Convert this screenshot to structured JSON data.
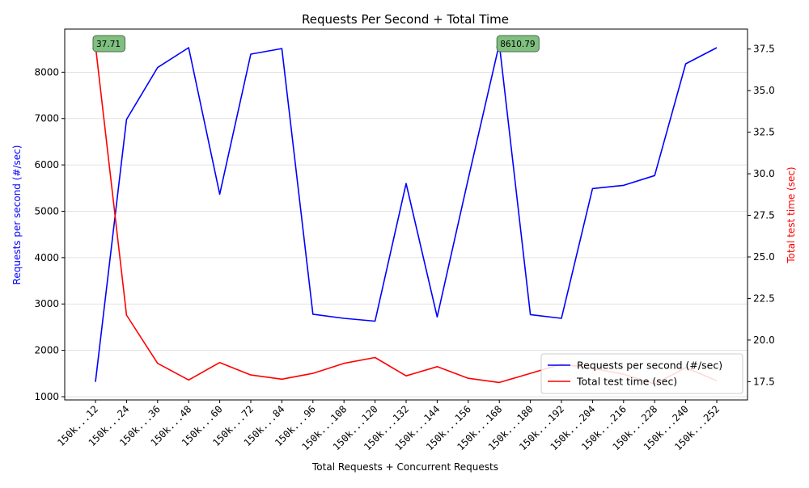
{
  "chart_data": {
    "type": "line",
    "title": "Requests Per Second + Total Time",
    "xlabel": "Total Requests + Concurrent Requests",
    "ylabel_left": "Requests per second (#/sec)",
    "ylabel_right": "Total test time (sec)",
    "categories": [
      "150k...12",
      "150k...24",
      "150k...36",
      "150k...48",
      "150k...60",
      "150k...72",
      "150k...84",
      "150k...96",
      "150k...108",
      "150k...120",
      "150k...132",
      "150k...144",
      "150k...156",
      "150k...168",
      "150k...180",
      "150k...192",
      "150k...204",
      "150k...216",
      "150k...228",
      "150k...240",
      "150k...252"
    ],
    "ylim_left": [
      930,
      8930
    ],
    "yticks_left": [
      1000,
      2000,
      3000,
      4000,
      5000,
      6000,
      7000,
      8000
    ],
    "ylim_right": [
      16.4,
      38.7
    ],
    "yticks_right": [
      17.5,
      20.0,
      22.5,
      25.0,
      27.5,
      30.0,
      32.5,
      35.0,
      37.5
    ],
    "grid": "horizontal-left",
    "legend_position": "bottom-right",
    "series": [
      {
        "name": "Requests per second (#/sec)",
        "axis": "left",
        "color": "#0000ff",
        "values": [
          1320,
          6980,
          8100,
          8530,
          5370,
          8390,
          8510,
          2780,
          2690,
          2630,
          5600,
          2720,
          5700,
          8610.79,
          2770,
          2690,
          5490,
          5560,
          5770,
          8180,
          8530
        ]
      },
      {
        "name": "Total test time (sec)",
        "axis": "right",
        "color": "#ff0000",
        "values": [
          37.71,
          21.5,
          18.6,
          17.6,
          18.65,
          17.9,
          17.65,
          18.0,
          18.6,
          18.95,
          17.85,
          18.4,
          17.7,
          17.45,
          18.0,
          18.55,
          18.3,
          17.95,
          17.35,
          18.35,
          17.55
        ]
      }
    ],
    "annotations": [
      {
        "label": "37.71",
        "series_index": 1,
        "point_index": 0
      },
      {
        "label": "8610.79",
        "series_index": 0,
        "point_index": 13
      }
    ]
  }
}
